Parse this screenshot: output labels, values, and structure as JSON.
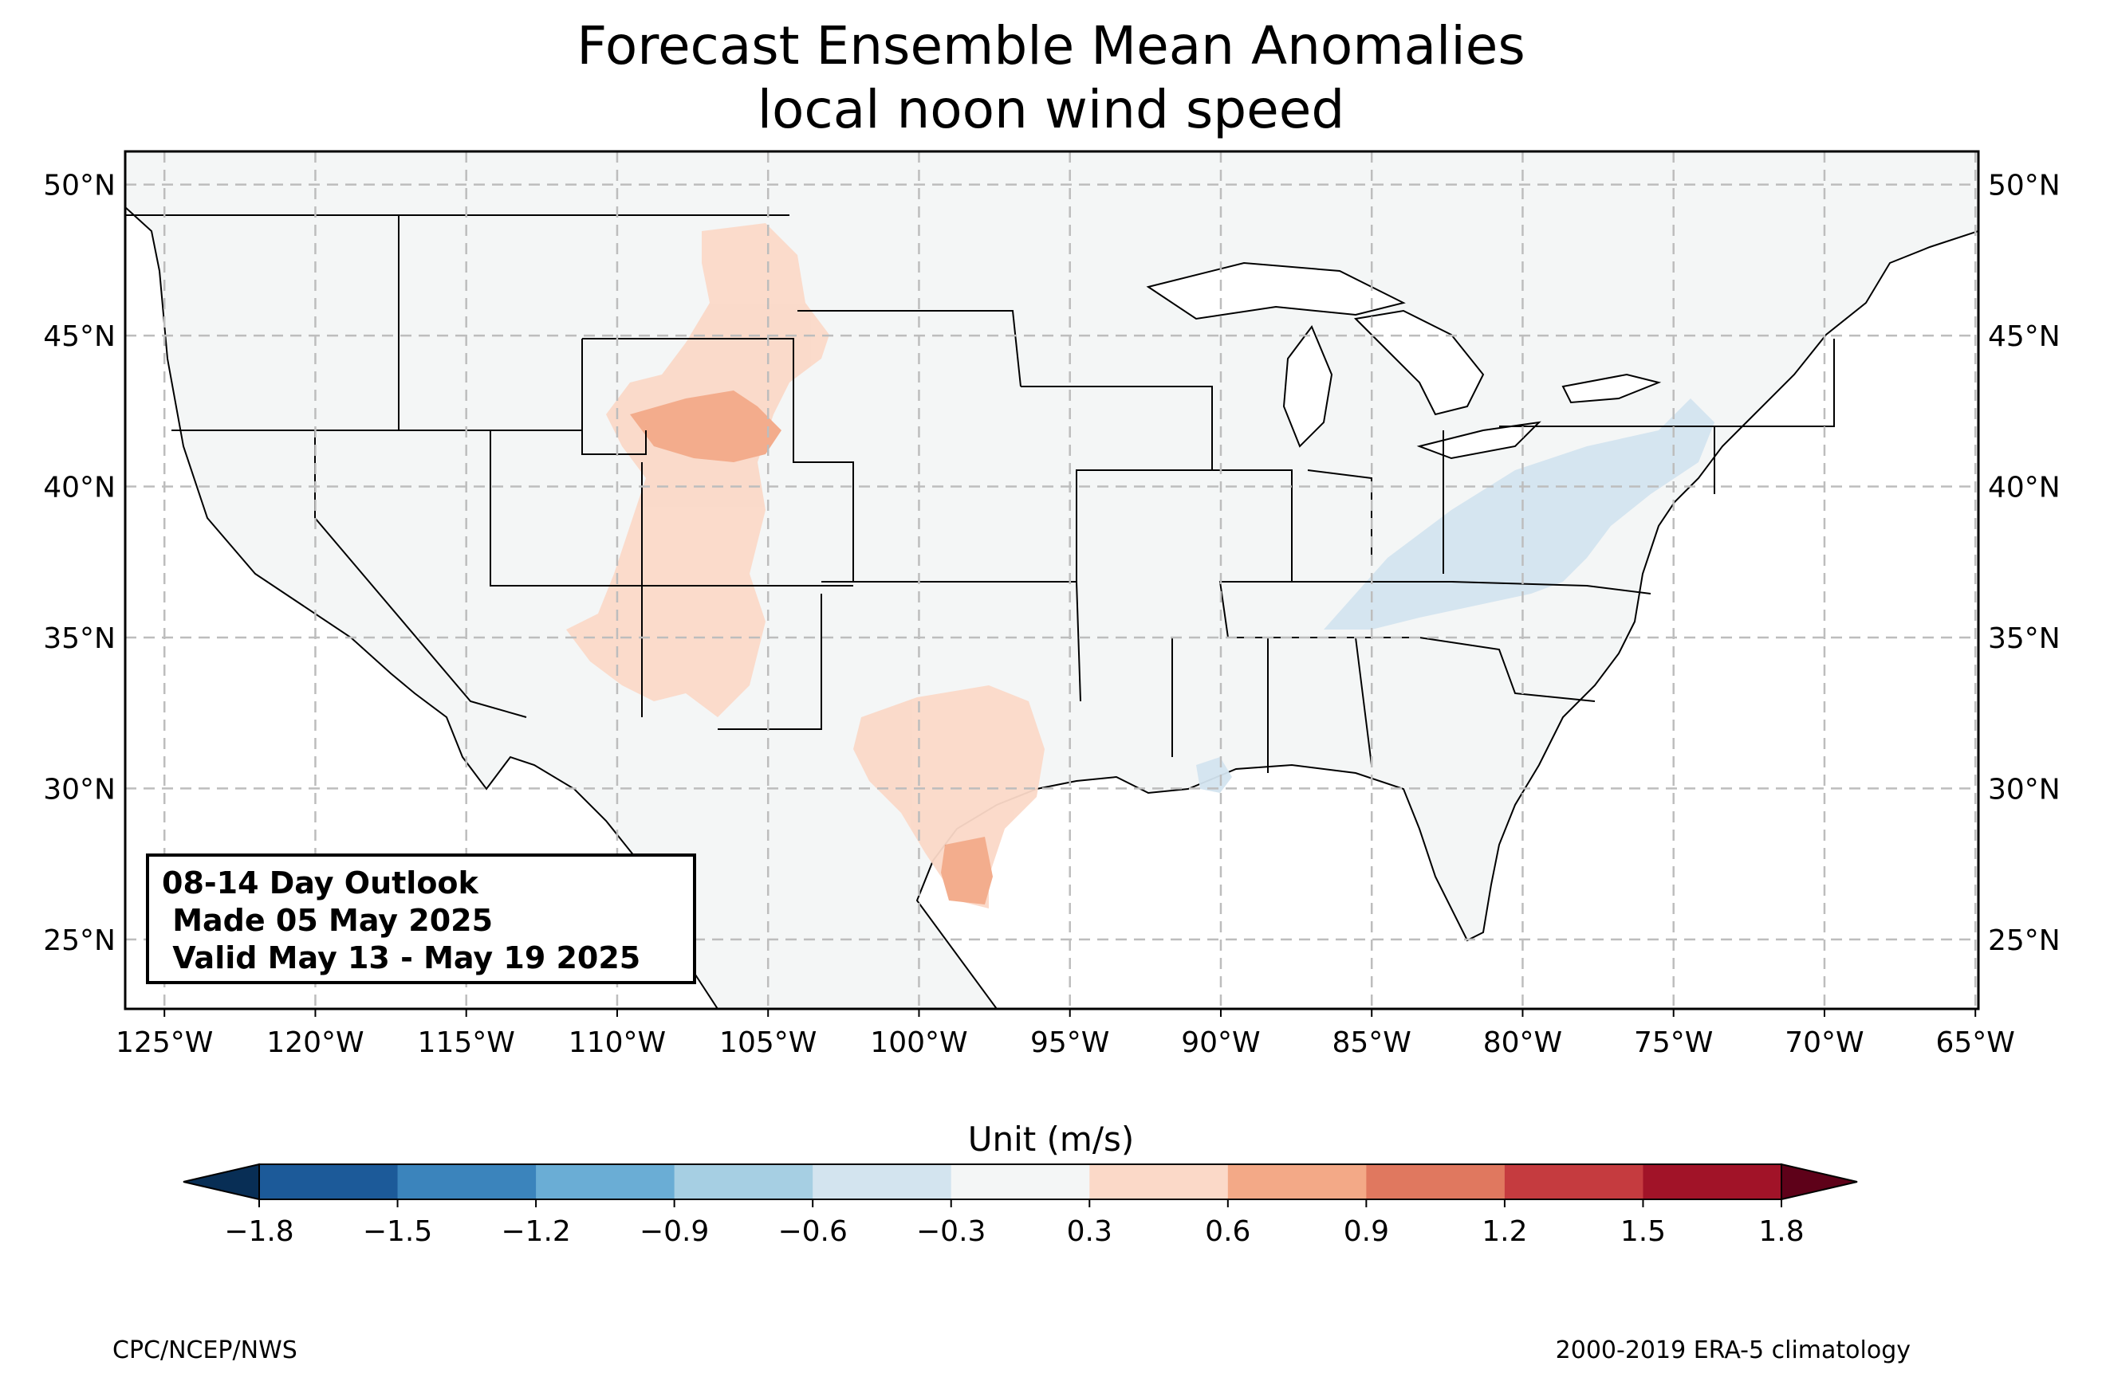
{
  "title": {
    "line1": "Forecast Ensemble Mean Anomalies",
    "line2": "local noon wind speed"
  },
  "map": {
    "lon_range": [
      -126.3,
      -64.9
    ],
    "lat_range": [
      22.7,
      51.1
    ],
    "lon_ticks": [
      "125°W",
      "120°W",
      "115°W",
      "110°W",
      "105°W",
      "100°W",
      "95°W",
      "90°W",
      "85°W",
      "80°W",
      "75°W",
      "70°W",
      "65°W"
    ],
    "lat_ticks": [
      "50°N",
      "45°N",
      "40°N",
      "35°N",
      "30°N",
      "25°N"
    ],
    "gridlines": "dashed",
    "land_color": "#f4f6f6",
    "ocean_color": "#ffffff",
    "anomaly_regions": [
      {
        "name": "northern-rockies-plains",
        "value_range": [
          0.3,
          0.6
        ]
      },
      {
        "name": "wyoming-colorado-core",
        "value_range": [
          0.6,
          0.9
        ]
      },
      {
        "name": "central-texas",
        "value_range": [
          0.3,
          0.6
        ]
      },
      {
        "name": "south-texas",
        "value_range": [
          0.6,
          0.9
        ]
      },
      {
        "name": "ohio-valley-appalachians",
        "value_range": [
          -0.6,
          -0.3
        ]
      },
      {
        "name": "louisiana-coast",
        "value_range": [
          -0.6,
          -0.3
        ]
      }
    ]
  },
  "outlook_box": {
    "line1": "08-14 Day Outlook",
    "line2": " Made 05 May 2025",
    "line3": " Valid May 13 - May 19 2025"
  },
  "colorbar": {
    "label": "Unit (m/s)",
    "ticks": [
      "−1.8",
      "−1.5",
      "−1.2",
      "−0.9",
      "−0.6",
      "−0.3",
      "0.3",
      "0.6",
      "0.9",
      "1.2",
      "1.5",
      "1.8"
    ],
    "bins": [
      {
        "from": -1.8,
        "to": -1.5,
        "color": "#1c5a99"
      },
      {
        "from": -1.5,
        "to": -1.2,
        "color": "#3b84bc"
      },
      {
        "from": -1.2,
        "to": -0.9,
        "color": "#6aadd5"
      },
      {
        "from": -0.9,
        "to": -0.6,
        "color": "#a6cfe3"
      },
      {
        "from": -0.6,
        "to": -0.3,
        "color": "#d3e4ef"
      },
      {
        "from": -0.3,
        "to": 0.3,
        "color": "#f4f6f6"
      },
      {
        "from": 0.3,
        "to": 0.6,
        "color": "#fbd9c8"
      },
      {
        "from": 0.6,
        "to": 0.9,
        "color": "#f3a987"
      },
      {
        "from": 0.9,
        "to": 1.2,
        "color": "#e0785f"
      },
      {
        "from": 1.2,
        "to": 1.5,
        "color": "#c53b3f"
      },
      {
        "from": 1.5,
        "to": 1.8,
        "color": "#a11328"
      }
    ],
    "extend_low_color": "#082e55",
    "extend_high_color": "#5e0119"
  },
  "footer": {
    "left": "CPC/NCEP/NWS",
    "right": "2000-2019 ERA-5 climatology"
  }
}
